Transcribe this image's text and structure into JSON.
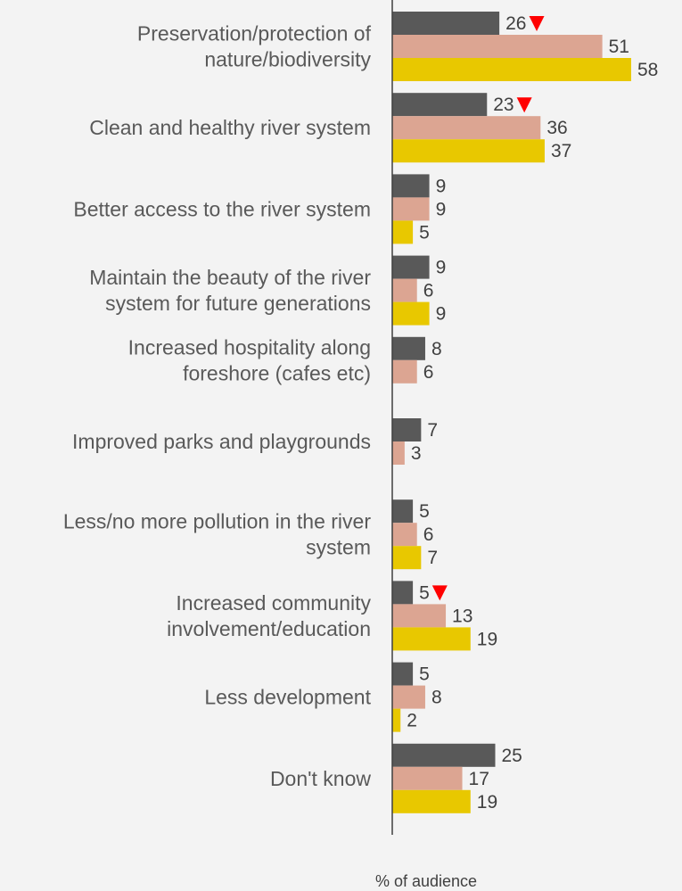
{
  "chart_data": {
    "type": "bar",
    "orientation": "horizontal",
    "xlabel": "% of audience",
    "colors": [
      "#595959",
      "#dca592",
      "#e8c800"
    ],
    "decrease_marker_color": "#ff0000",
    "categories": [
      [
        "Preservation/protection of",
        "nature/biodiversity"
      ],
      [
        "Clean and healthy river system"
      ],
      [
        "Better access to the river system"
      ],
      [
        "Maintain the beauty of the river",
        "system for future generations"
      ],
      [
        "Increased hospitality along",
        "foreshore (cafes etc)"
      ],
      [
        "Improved parks and playgrounds"
      ],
      [
        "Less/no more pollution in the river",
        "system"
      ],
      [
        "Increased community",
        "involvement/education"
      ],
      [
        "Less development"
      ],
      [
        "Don't know"
      ]
    ],
    "series": [
      {
        "values": [
          26,
          23,
          9,
          9,
          8,
          7,
          5,
          5,
          5,
          25
        ],
        "decrease_flags": [
          true,
          true,
          false,
          false,
          false,
          false,
          false,
          true,
          false,
          false
        ]
      },
      {
        "values": [
          51,
          36,
          9,
          6,
          6,
          3,
          6,
          13,
          8,
          17
        ]
      },
      {
        "values": [
          58,
          37,
          5,
          9,
          null,
          null,
          7,
          19,
          2,
          19
        ]
      }
    ]
  }
}
